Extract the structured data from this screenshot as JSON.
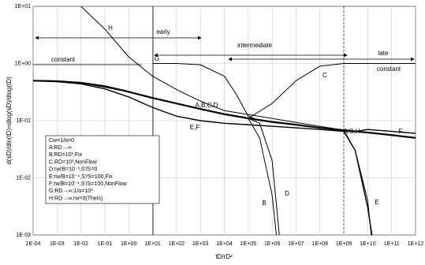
{
  "chart_data": {
    "type": "line",
    "xscale": "log",
    "yscale": "log",
    "grid": true,
    "xlabel": "tD/rD²",
    "ylabel": "d(sD)/dln(tD)=dlog(sD)/dlog(tD)",
    "xlim": [
      0.0001,
      1000000000000
    ],
    "ylim": [
      0.001,
      10
    ],
    "xticks": [
      {
        "value": 0.0001,
        "label": "1E-04"
      },
      {
        "value": 0.001,
        "label": "1E-03"
      },
      {
        "value": 0.01,
        "label": "1E-02"
      },
      {
        "value": 0.1,
        "label": "1E-01"
      },
      {
        "value": 1,
        "label": "1E+00"
      },
      {
        "value": 10,
        "label": "1E+01"
      },
      {
        "value": 100,
        "label": "1E+02"
      },
      {
        "value": 1000,
        "label": "1E+03"
      },
      {
        "value": 10000,
        "label": "1E+04"
      },
      {
        "value": 100000,
        "label": "1E+05"
      },
      {
        "value": 1000000,
        "label": "1E+06"
      },
      {
        "value": 10000000,
        "label": "1E+07"
      },
      {
        "value": 100000000,
        "label": "1E+08"
      },
      {
        "value": 1000000000,
        "label": "1E+09"
      },
      {
        "value": 10000000000,
        "label": "1E+10"
      },
      {
        "value": 100000000000,
        "label": "1E+11"
      },
      {
        "value": 1000000000000,
        "label": "1E+12"
      }
    ],
    "yticks": [
      {
        "value": 0.001,
        "label": "1E-03"
      },
      {
        "value": 0.01,
        "label": "1E-02"
      },
      {
        "value": 0.1,
        "label": "1E-01"
      },
      {
        "value": 1,
        "label": "1E+00"
      },
      {
        "value": 10,
        "label": "1E+01"
      }
    ],
    "series": [
      {
        "name": "A",
        "color": "#000000",
        "width": 2.2,
        "x": [
          0.0001,
          0.001,
          0.01,
          0.1,
          1,
          10,
          100,
          1000,
          10000,
          100000,
          1000000,
          10000000,
          100000000,
          1000000000,
          10000000000,
          100000000000,
          1000000000000
        ],
        "values": [
          0.5,
          0.49,
          0.46,
          0.4,
          0.32,
          0.25,
          0.2,
          0.16,
          0.13,
          0.11,
          0.095,
          0.085,
          0.075,
          0.068,
          0.062,
          0.056,
          0.05
        ]
      },
      {
        "name": "B",
        "color": "#000000",
        "width": 1,
        "x": [
          0.0001,
          0.01,
          1,
          100,
          10000,
          100000,
          300000,
          1000000,
          1500000
        ],
        "values": [
          0.5,
          0.46,
          0.32,
          0.2,
          0.13,
          0.11,
          0.05,
          0.005,
          0.001
        ]
      },
      {
        "name": "C",
        "color": "#000000",
        "width": 1,
        "x": [
          10000,
          100000,
          1000000,
          10000000,
          100000000,
          1000000000,
          1000000000000
        ],
        "values": [
          0.13,
          0.11,
          0.2,
          0.5,
          0.9,
          1,
          1
        ]
      },
      {
        "name": "D",
        "color": "#000000",
        "width": 1,
        "x": [
          100000,
          300000,
          1000000,
          2000000
        ],
        "values": [
          0.11,
          0.09,
          0.02,
          0.001
        ]
      },
      {
        "name": "E",
        "color": "#000000",
        "width": 1.4,
        "x": [
          0.0001,
          0.001,
          0.01,
          0.1,
          1,
          10,
          100,
          1000,
          10000,
          100000,
          1000000,
          10000000,
          100000000,
          1000000000,
          3000000000,
          10000000000,
          15000000000
        ],
        "values": [
          0.5,
          0.48,
          0.44,
          0.36,
          0.26,
          0.17,
          0.12,
          0.1,
          0.09,
          0.085,
          0.08,
          0.075,
          0.07,
          0.065,
          0.03,
          0.003,
          0.001
        ]
      },
      {
        "name": "F",
        "color": "#000000",
        "width": 1.4,
        "x": [
          1000000000,
          3000000000,
          10000000000,
          100000000000,
          1000000000000
        ],
        "values": [
          0.065,
          0.065,
          0.07,
          0.065,
          0.06
        ]
      },
      {
        "name": "G",
        "color": "#000000",
        "width": 1,
        "x": [
          10,
          100,
          1000,
          10000,
          30000,
          100000,
          300000
        ],
        "values": [
          1,
          1,
          0.95,
          0.6,
          0.3,
          0.12,
          0.1
        ]
      },
      {
        "name": "H",
        "color": "#000000",
        "width": 1,
        "x": [
          0.01,
          0.1,
          1,
          10,
          100,
          1000,
          10000,
          1000000000,
          3000000000,
          10000000000,
          14000000000
        ],
        "values": [
          10,
          4,
          1.3,
          0.6,
          0.35,
          0.22,
          0.15,
          0.068,
          0.03,
          0.004,
          0.001
        ]
      }
    ],
    "annotations": [
      "early",
      "intermediate",
      "late",
      "constant",
      "constant",
      "H",
      "G",
      "C",
      "A,B,C,D",
      "E,F",
      "A,C,H",
      "F",
      "B",
      "D",
      "E"
    ],
    "legend_lines": [
      "Cw=1/α=0",
      "A:RD→∞",
      "B:RD=10³,Fix",
      "C:RD=10³,NonFlow",
      "D:rw/B=10⁻³,S'/S=0",
      "E:rw/B=10⁻⁴,S'/S=100,Fix",
      "F:rw/B=10⁻⁴,S'/S=100,NonFlow",
      "G:RD→∞:1/α=10³",
      "H:RD→∞:rw=0(Theis)"
    ]
  }
}
